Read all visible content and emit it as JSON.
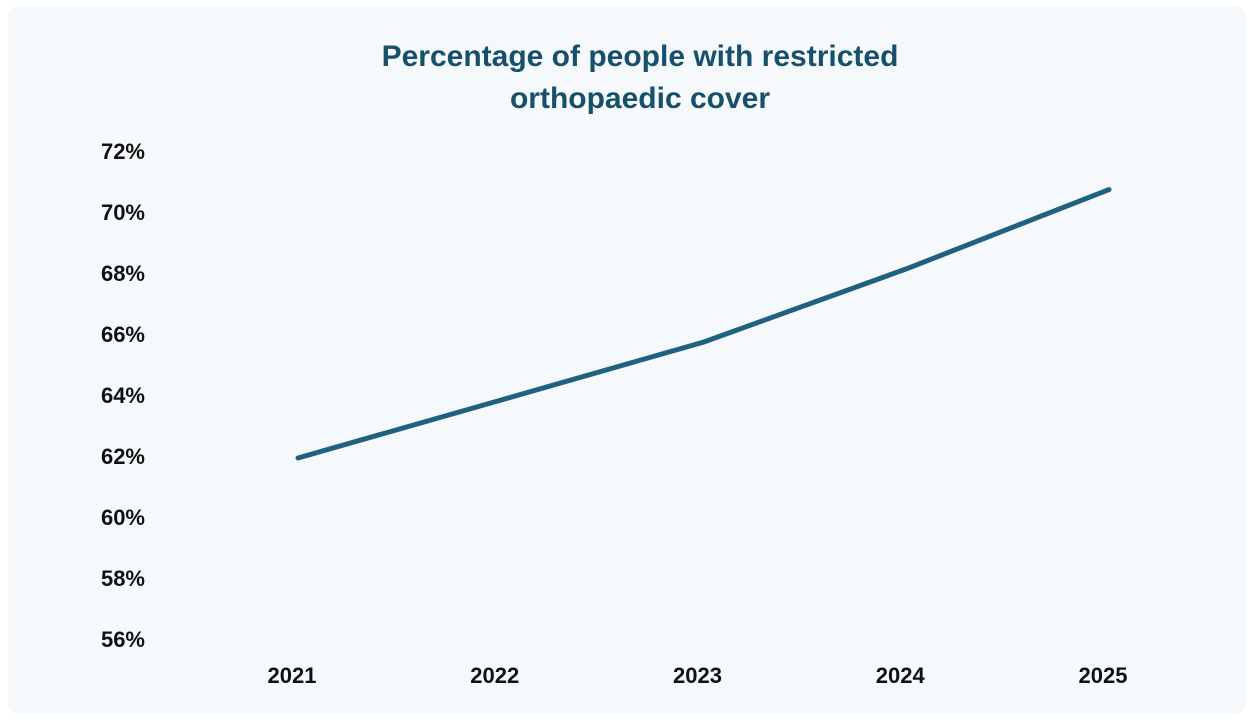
{
  "chart_data": {
    "type": "line",
    "title_lines": [
      "Percentage of people with restricted",
      "orthopaedic cover"
    ],
    "x": [
      "2021",
      "2022",
      "2023",
      "2024",
      "2025"
    ],
    "y_ticks": [
      "72%",
      "70%",
      "68%",
      "66%",
      "64%",
      "62%",
      "60%",
      "58%",
      "56%"
    ],
    "ylim": [
      56,
      72
    ],
    "grid": false,
    "series": [
      {
        "values": [
          62.0,
          63.9,
          65.8,
          68.2,
          70.8
        ],
        "color": "#1f617f"
      }
    ],
    "xlabel": "",
    "ylabel": ""
  }
}
